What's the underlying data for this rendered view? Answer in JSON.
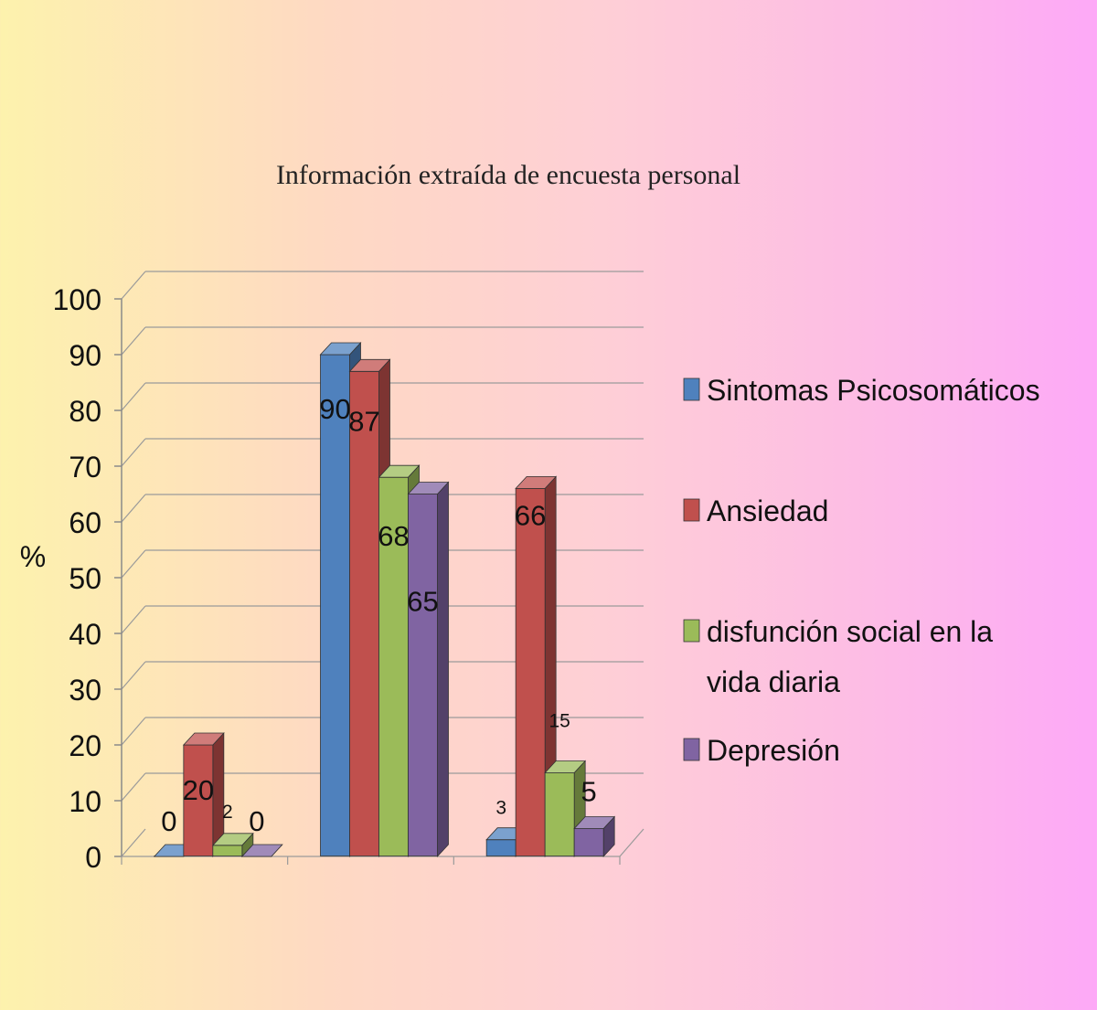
{
  "chart_data": {
    "type": "bar",
    "title": "Información extraída de encuesta personal",
    "ylabel": "%",
    "xlabel": "",
    "ylim": [
      0,
      100
    ],
    "yticks": [
      0,
      10,
      20,
      30,
      40,
      50,
      60,
      70,
      80,
      90,
      100
    ],
    "categories": [
      "",
      "",
      ""
    ],
    "grid": true,
    "legend_position": "right",
    "style": "3d-clustered-column",
    "series": [
      {
        "name": "Sintomas Psicosomáticos",
        "color": "#4f81bd",
        "values": [
          0,
          90,
          3
        ]
      },
      {
        "name": "Ansiedad",
        "color": "#c0504d",
        "values": [
          20,
          87,
          66
        ]
      },
      {
        "name": "disfunción social en la vida diaria",
        "color": "#9bbb59",
        "values": [
          2,
          68,
          15
        ]
      },
      {
        "name": "Depresión",
        "color": "#8064a2",
        "values": [
          0,
          65,
          5
        ]
      }
    ]
  },
  "legend": {
    "items": [
      {
        "lines": [
          "Sintomas Psicosomáticos"
        ]
      },
      {
        "lines": [
          "Ansiedad"
        ]
      },
      {
        "lines": [
          "disfunción social en la",
          "vida diaria"
        ]
      },
      {
        "lines": [
          "Depresión"
        ]
      }
    ]
  }
}
